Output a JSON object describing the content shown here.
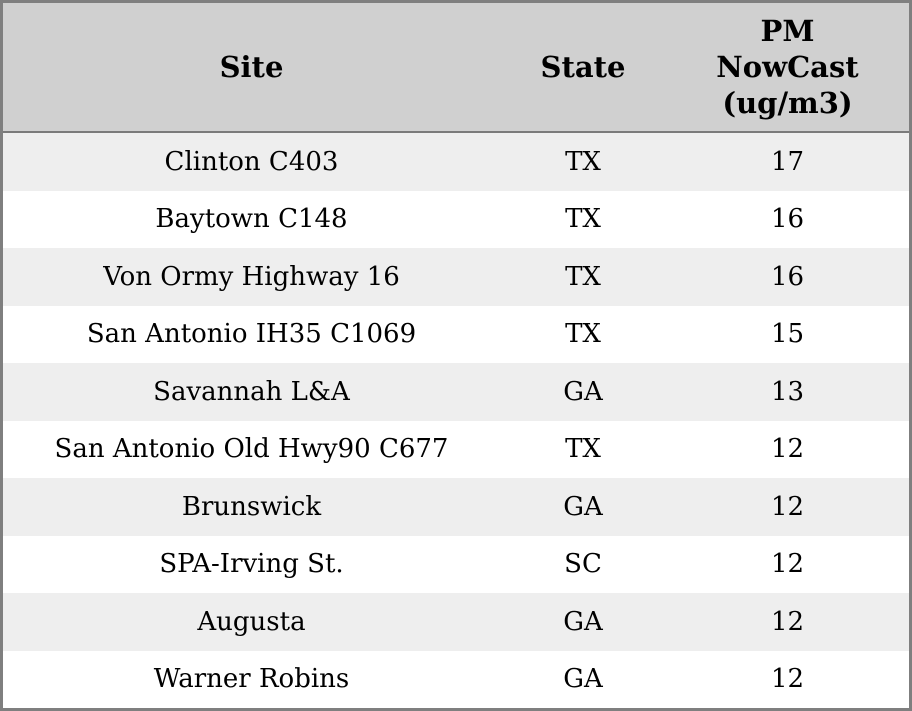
{
  "chart_data": {
    "type": "table",
    "columns": [
      "Site",
      "State",
      "PM NowCast (ug/m3)"
    ],
    "rows": [
      [
        "Clinton C403",
        "TX",
        17
      ],
      [
        "Baytown C148",
        "TX",
        16
      ],
      [
        "Von Ormy Highway 16",
        "TX",
        16
      ],
      [
        "San Antonio IH35 C1069",
        "TX",
        15
      ],
      [
        "Savannah L&A",
        "GA",
        13
      ],
      [
        "San Antonio Old Hwy90 C677",
        "TX",
        12
      ],
      [
        "Brunswick",
        "GA",
        12
      ],
      [
        "SPA-Irving St.",
        "SC",
        12
      ],
      [
        "Augusta",
        "GA",
        12
      ],
      [
        "Warner Robins",
        "GA",
        12
      ]
    ],
    "layout": {
      "striped_rows": true,
      "alignment": "center"
    }
  },
  "header": {
    "site": "Site",
    "state": "State",
    "pm": "PM\nNowCast\n(ug/m3)"
  },
  "colors": {
    "header_bg": "#d0d0d0",
    "row_odd_bg": "#eeeeee",
    "row_even_bg": "#ffffff",
    "border": "#7f7f7f",
    "text": "#000000"
  }
}
